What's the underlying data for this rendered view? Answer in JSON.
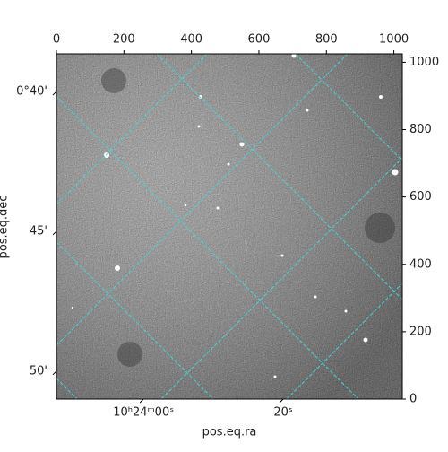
{
  "chart_data": {
    "type": "image",
    "xlabel": "pos.eq.ra",
    "ylabel": "pos.eq.dec",
    "xlim": [
      0,
      1025
    ],
    "ylim": [
      0,
      1025
    ],
    "xticks": [
      0,
      200,
      400,
      600,
      800,
      1000
    ],
    "yticks": [
      0,
      200,
      400,
      600,
      800,
      1000
    ],
    "ra_ticks": [
      {
        "value": 258,
        "label": "10ʰ24ᵐ00ˢ"
      },
      {
        "value": 672,
        "label": "20ˢ"
      }
    ],
    "dec_ticks": [
      {
        "value": 913,
        "label": "0°40'"
      },
      {
        "value": 498,
        "label": "45'"
      },
      {
        "value": 83,
        "label": "50'"
      }
    ],
    "grid_color": "#3fd6d6"
  }
}
